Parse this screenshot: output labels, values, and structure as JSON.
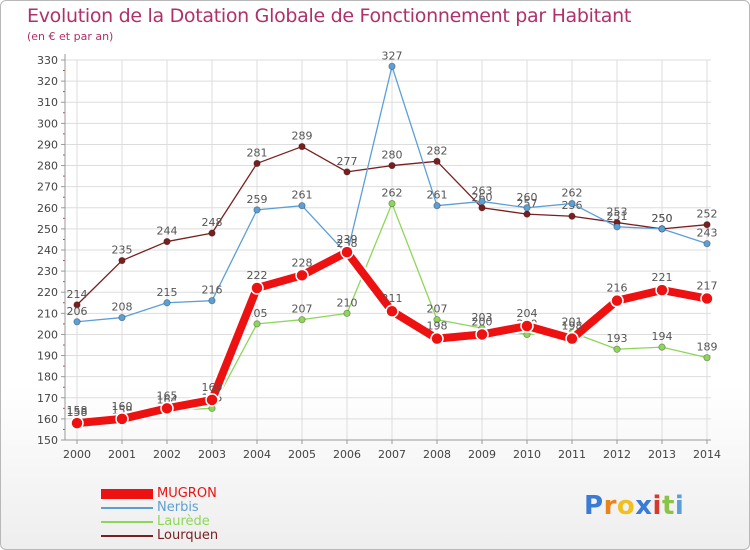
{
  "chart_data": {
    "type": "line",
    "title": "Evolution de la Dotation Globale de Fonctionnement par Habitant",
    "subtitle": "(en € et par an)",
    "xlabel": "",
    "ylabel": "",
    "categories": [
      "2000",
      "2001",
      "2002",
      "2003",
      "2004",
      "2005",
      "2006",
      "2007",
      "2008",
      "2009",
      "2010",
      "2011",
      "2012",
      "2013",
      "2014"
    ],
    "ylim": [
      150,
      330
    ],
    "yticks": [
      150,
      160,
      170,
      180,
      190,
      200,
      210,
      220,
      230,
      240,
      250,
      260,
      270,
      280,
      290,
      300,
      310,
      320,
      330
    ],
    "grid": true,
    "legend_position": "bottom-left",
    "series": [
      {
        "name": "Lourquen",
        "color": "#7a1f1f",
        "values": [
          214,
          235,
          244,
          248,
          281,
          289,
          277,
          280,
          282,
          260,
          257,
          256,
          253,
          250,
          252
        ]
      },
      {
        "name": "Nerbis",
        "color": "#5c9fd6",
        "values": [
          206,
          208,
          215,
          216,
          259,
          261,
          238,
          327,
          261,
          263,
          260,
          262,
          251,
          250,
          243
        ]
      },
      {
        "name": "Laurède",
        "color": "#8ed65a",
        "values": [
          158,
          159,
          164,
          165,
          205,
          207,
          210,
          262,
          207,
          203,
          200,
          201,
          193,
          194,
          189
        ]
      },
      {
        "name": "MUGRON",
        "color": "#ee1111",
        "values": [
          158,
          160,
          165,
          169,
          222,
          228,
          239,
          211,
          198,
          200,
          204,
          198,
          216,
          221,
          217
        ]
      }
    ]
  },
  "legend": [
    {
      "label": "MUGRON",
      "color": "#ee1111"
    },
    {
      "label": "Nerbis",
      "color": "#5c9fd6"
    },
    {
      "label": "Laurède",
      "color": "#8ed65a"
    },
    {
      "label": "Lourquen",
      "color": "#7a1f1f"
    }
  ],
  "logo": {
    "text": "Proxiti",
    "letters": [
      "P",
      "r",
      "o",
      "x",
      "i",
      "t",
      "i"
    ],
    "colors": [
      "#3a7bd5",
      "#e8841a",
      "#f0c020",
      "#3a7bd5",
      "#d63a2f",
      "#8bc34a",
      "#5c9fd6"
    ]
  }
}
